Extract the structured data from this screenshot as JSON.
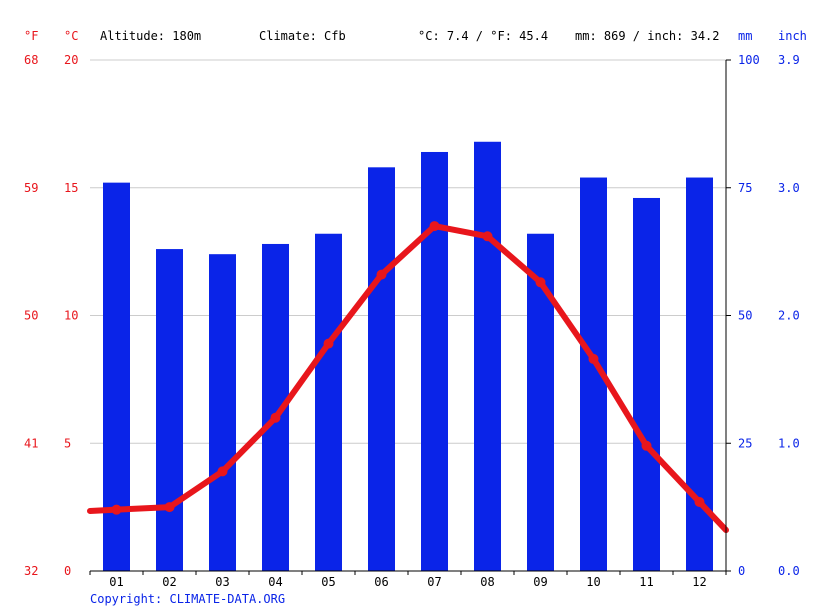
{
  "header": {
    "unit_f": "°F",
    "unit_c": "°C",
    "altitude": "Altitude: 180m",
    "climate": "Climate: Cfb",
    "temp_avg": "°C: 7.4 / °F: 45.4",
    "precip_total": "mm: 869 / inch: 34.2",
    "unit_mm": "mm",
    "unit_inch": "inch"
  },
  "colors": {
    "temperature_line": "#e8161c",
    "precip_bar": "#0a24e8",
    "axis_label_red": "#e8161c",
    "axis_label_blue": "#0a24e8",
    "grid": "#cccccc"
  },
  "chart_data": {
    "type": "bar+line",
    "categories": [
      "01",
      "02",
      "03",
      "04",
      "05",
      "06",
      "07",
      "08",
      "09",
      "10",
      "11",
      "12"
    ],
    "series": [
      {
        "type": "bar",
        "axis": "right",
        "values": [
          76,
          63,
          62,
          64,
          66,
          79,
          82,
          84,
          66,
          77,
          73,
          77
        ]
      },
      {
        "type": "line",
        "axis": "left",
        "values": [
          2.4,
          2.5,
          3.9,
          6.0,
          8.9,
          11.6,
          13.5,
          13.1,
          11.3,
          8.3,
          4.9,
          2.7
        ]
      }
    ],
    "left_axis_c": {
      "ticks": [
        "0",
        "5",
        "10",
        "15",
        "20"
      ],
      "ylim": [
        0,
        20
      ]
    },
    "left_axis_f": {
      "ticks": [
        "32",
        "41",
        "50",
        "59",
        "68"
      ]
    },
    "right_axis_mm": {
      "ticks": [
        "0",
        "25",
        "50",
        "75",
        "100"
      ],
      "ylim": [
        0,
        100
      ]
    },
    "right_axis_inch": {
      "ticks": [
        "0.0",
        "1.0",
        "2.0",
        "3.0",
        "3.9"
      ]
    },
    "grid": true
  },
  "footer": {
    "copyright": "Copyright: CLIMATE-DATA.ORG"
  }
}
